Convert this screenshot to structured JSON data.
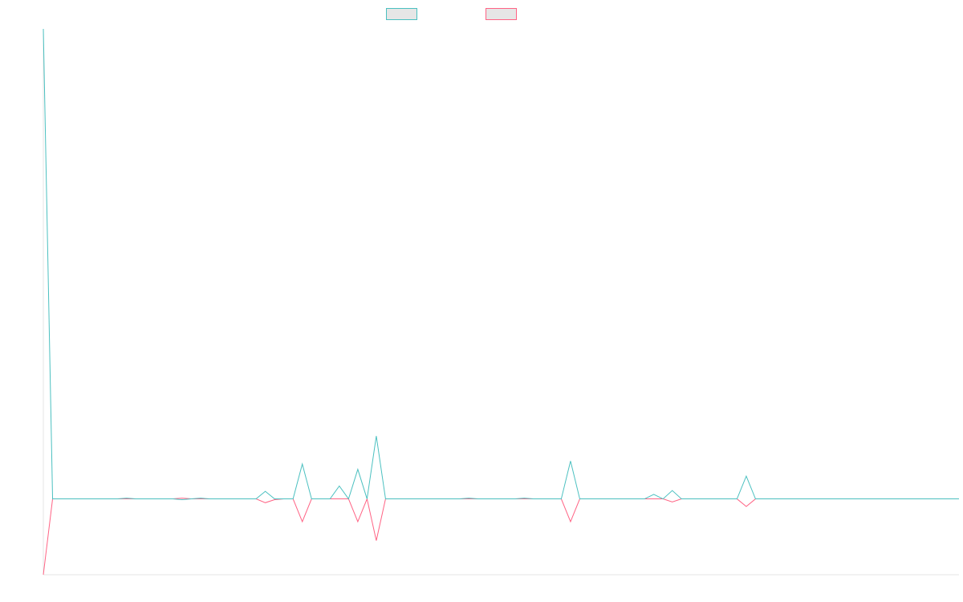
{
  "chart_data": {
    "type": "line",
    "title": "",
    "xlabel": "",
    "ylabel": "",
    "grid": false,
    "legend_placement": "top-center",
    "x": [
      0,
      1,
      2,
      3,
      4,
      5,
      6,
      7,
      8,
      9,
      10,
      11,
      12,
      13,
      14,
      15,
      16,
      17,
      18,
      19,
      20,
      21,
      22,
      23,
      24,
      25,
      26,
      27,
      28,
      29,
      30,
      31,
      32,
      33,
      34,
      35,
      36,
      37,
      38,
      39,
      40,
      41,
      42,
      43,
      44,
      45,
      46,
      47,
      48,
      49,
      50,
      51,
      52,
      53,
      54,
      55,
      56,
      57,
      58,
      59,
      60,
      61,
      62,
      63,
      64,
      65,
      66,
      67,
      68,
      69,
      70,
      71,
      72,
      73,
      74,
      75,
      76,
      77,
      78,
      79,
      80,
      81,
      82,
      83,
      84,
      85,
      86,
      87,
      88,
      89,
      90,
      91,
      92,
      93,
      94,
      95,
      96,
      97,
      98,
      99
    ],
    "xlim": [
      0,
      99
    ],
    "ylim": [
      -100,
      620
    ],
    "series": [
      {
        "name": "",
        "color": "#4bc0c0",
        "values": [
          620,
          0,
          0,
          0,
          0,
          0,
          0,
          0,
          0,
          1,
          0,
          0,
          0,
          0,
          0,
          -1,
          0,
          1,
          0,
          0,
          0,
          0,
          0,
          0,
          10,
          0,
          0,
          0,
          46,
          0,
          0,
          0,
          17,
          0,
          39,
          0,
          83,
          0,
          0,
          0,
          0,
          0,
          0,
          0,
          0,
          0,
          1,
          0,
          0,
          0,
          0,
          0,
          1,
          0,
          0,
          0,
          0,
          50,
          0,
          0,
          0,
          0,
          0,
          0,
          0,
          0,
          6,
          0,
          11,
          0,
          0,
          0,
          0,
          0,
          0,
          0,
          30,
          0,
          0,
          0,
          0,
          0,
          0,
          0,
          0,
          0,
          0,
          0,
          0,
          0,
          0,
          0,
          0,
          0,
          0,
          0,
          0,
          0,
          0,
          0
        ]
      },
      {
        "name": "",
        "color": "#ff6384",
        "values": [
          -100,
          0,
          0,
          0,
          0,
          0,
          0,
          0,
          0,
          0,
          0,
          0,
          0,
          0,
          0,
          1,
          0,
          0,
          0,
          0,
          0,
          0,
          0,
          0,
          -5,
          -1,
          0,
          0,
          -30,
          0,
          0,
          0,
          0,
          0,
          -30,
          0,
          -55,
          0,
          0,
          0,
          0,
          0,
          0,
          0,
          0,
          0,
          0,
          0,
          0,
          0,
          0,
          0,
          0,
          0,
          0,
          0,
          0,
          -30,
          0,
          0,
          0,
          0,
          0,
          0,
          0,
          0,
          0,
          0,
          -4,
          0,
          0,
          0,
          0,
          0,
          0,
          0,
          -10,
          0,
          0,
          0,
          0,
          0,
          0,
          0,
          0,
          0,
          0,
          0,
          0,
          0,
          0,
          0,
          0,
          0,
          0,
          0,
          0,
          0,
          0,
          0
        ]
      }
    ]
  }
}
